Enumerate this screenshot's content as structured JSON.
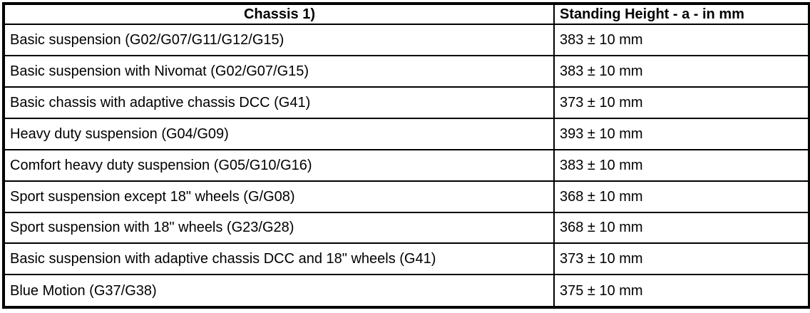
{
  "table": {
    "columns": [
      {
        "label": "Chassis 1)"
      },
      {
        "label": "Standing Height - a - in mm"
      }
    ],
    "rows": [
      {
        "chassis": "Basic suspension (G02/G07/G11/G12/G15)",
        "height": "383 ± 10 mm"
      },
      {
        "chassis": "Basic suspension with Nivomat (G02/G07/G15)",
        "height": "383 ± 10 mm"
      },
      {
        "chassis": "Basic chassis with adaptive chassis DCC (G41)",
        "height": "373 ± 10 mm"
      },
      {
        "chassis": "Heavy duty suspension (G04/G09)",
        "height": "393 ± 10 mm"
      },
      {
        "chassis": "Comfort heavy duty suspension (G05/G10/G16)",
        "height": "383 ± 10 mm"
      },
      {
        "chassis": "Sport suspension except 18\" wheels (G/G08)",
        "height": "368 ± 10 mm"
      },
      {
        "chassis": "Sport suspension with 18\" wheels (G23/G28)",
        "height": "368 ± 10 mm"
      },
      {
        "chassis": "Basic suspension with adaptive chassis DCC and 18\" wheels (G41)",
        "height": "373 ± 10 mm"
      },
      {
        "chassis": "Blue Motion (G37/G38)",
        "height": "375 ± 10 mm"
      }
    ],
    "colors": {
      "border": "#000000",
      "text": "#000000",
      "background": "#ffffff"
    }
  }
}
